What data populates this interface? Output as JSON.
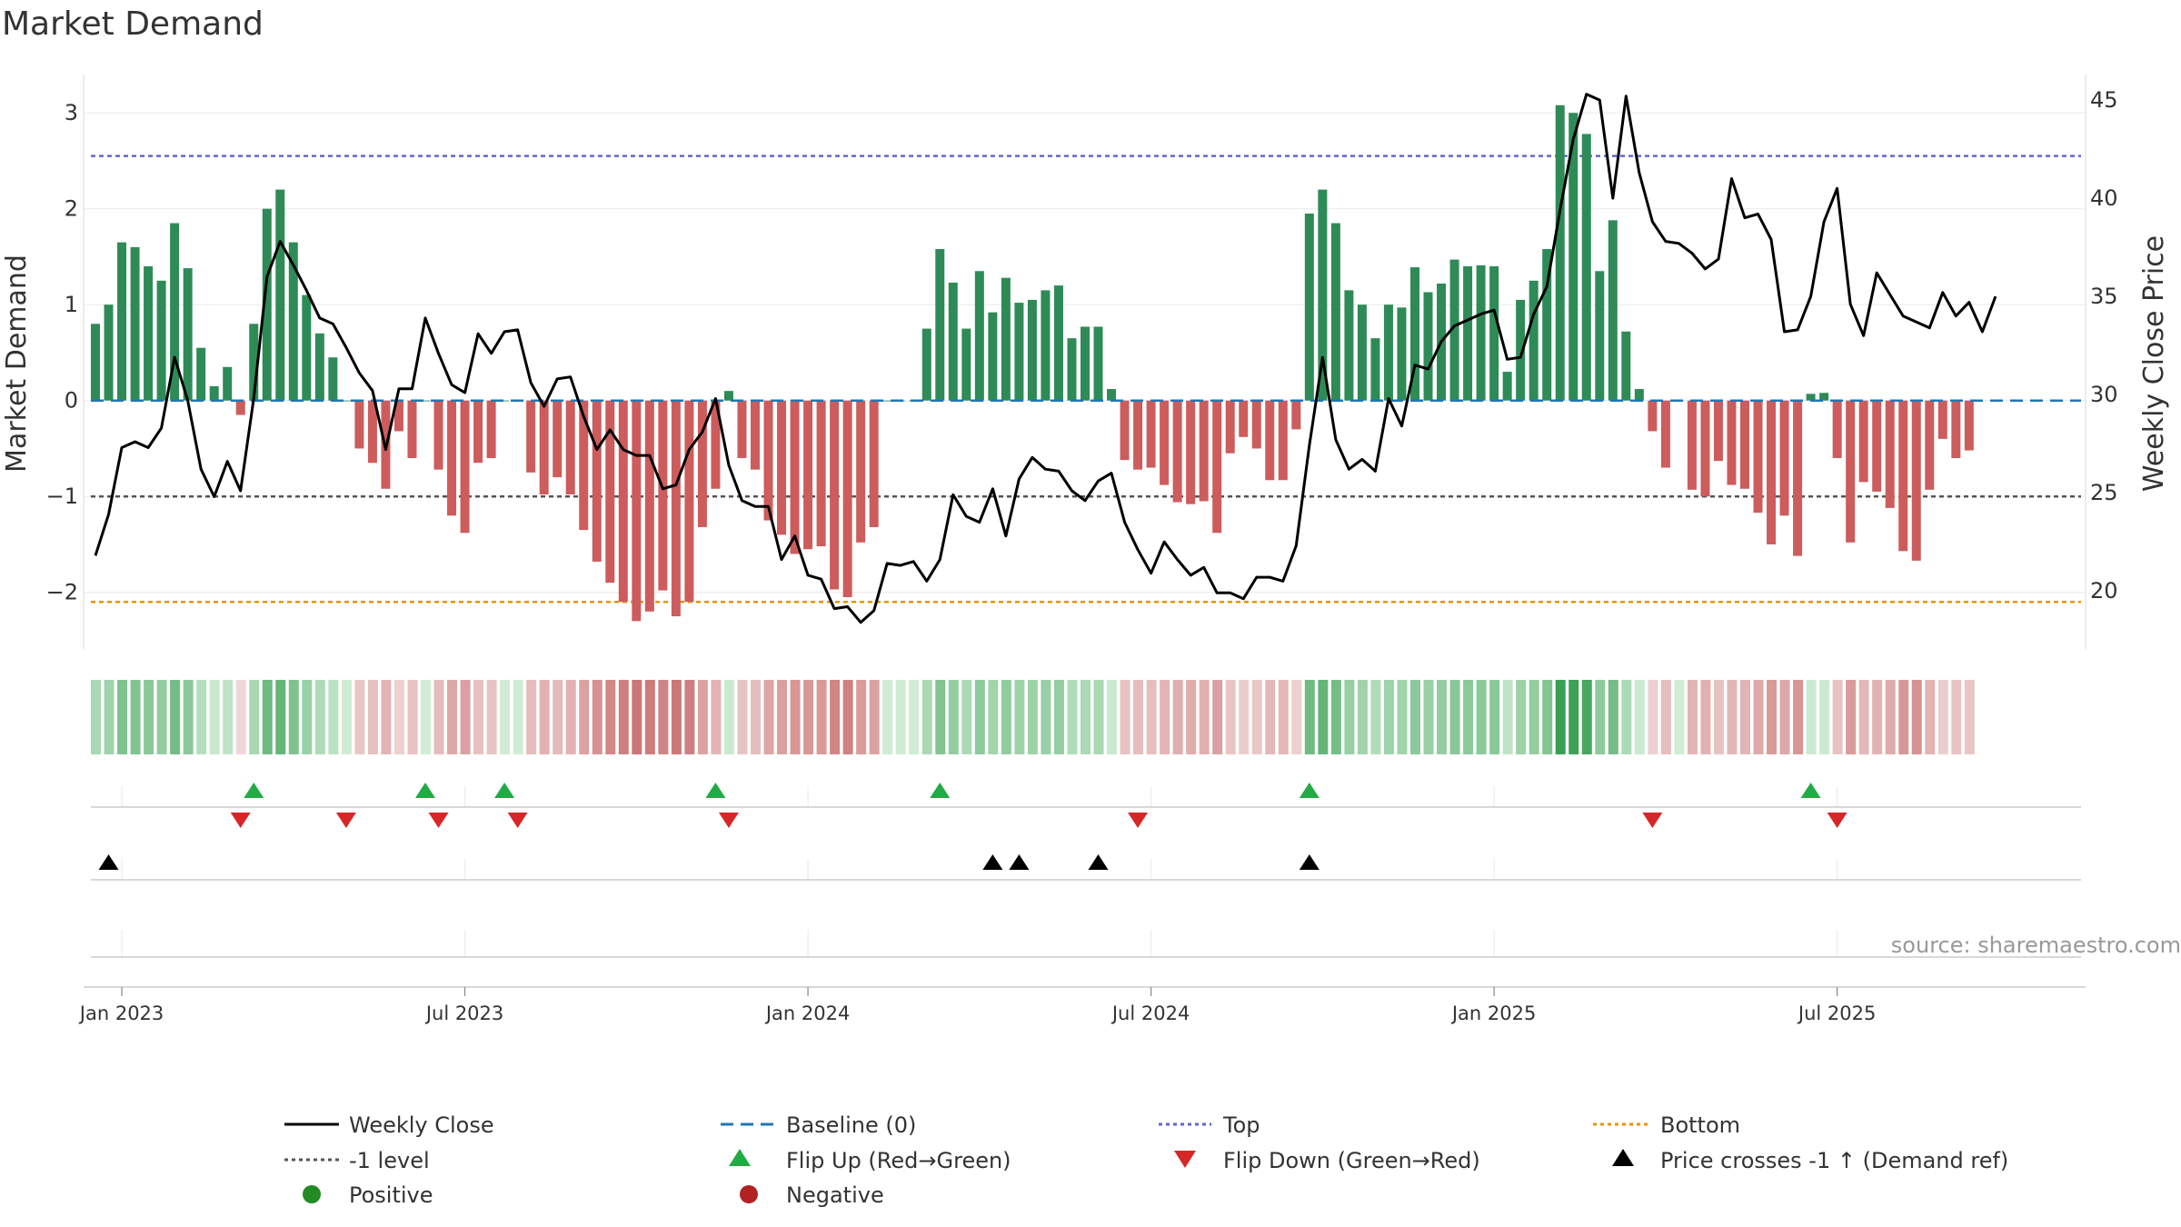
{
  "chart_data": {
    "type": "bar",
    "title": "Market Demand",
    "ylabel_left": "Market Demand",
    "ylabel_right": "Weekly Close Price",
    "source": "source: sharemaestro.com",
    "ylim_left": [
      -2.6,
      3.4
    ],
    "ylim_right": [
      17.0,
      46.3
    ],
    "yticks_left": [
      {
        "v": 3,
        "label": "3"
      },
      {
        "v": 2,
        "label": "2"
      },
      {
        "v": 1,
        "label": "1"
      },
      {
        "v": 0,
        "label": "0"
      },
      {
        "v": -1,
        "label": "−1"
      },
      {
        "v": -2,
        "label": "−2"
      }
    ],
    "yticks_right": [
      {
        "v": 45,
        "label": "45"
      },
      {
        "v": 40,
        "label": "40"
      },
      {
        "v": 35,
        "label": "35"
      },
      {
        "v": 30,
        "label": "30"
      },
      {
        "v": 25,
        "label": "25"
      },
      {
        "v": 20,
        "label": "20"
      }
    ],
    "xticks": [
      {
        "i": 2,
        "label": "Jan 2023"
      },
      {
        "i": 28,
        "label": "Jul 2023"
      },
      {
        "i": 54,
        "label": "Jan 2024"
      },
      {
        "i": 80,
        "label": "Jul 2024"
      },
      {
        "i": 106,
        "label": "Jan 2025"
      },
      {
        "i": 132,
        "label": "Jul 2025"
      }
    ],
    "reference_lines": {
      "top": 2.55,
      "minus_one": -1.0,
      "bottom": -2.1,
      "baseline": 0
    },
    "colors": {
      "positive": "#2e8b57",
      "negative": "#cd5c5c",
      "price": "#000000",
      "top": "#6666cc",
      "bottom": "#e69500",
      "minus_one": "#555555",
      "baseline": "#1f77b4",
      "flip_up": "#22aa44",
      "flip_down": "#d62728",
      "cross": "#000000"
    },
    "series": [
      {
        "name": "Market Demand",
        "values": [
          0.8,
          1.0,
          1.65,
          1.6,
          1.4,
          1.25,
          1.85,
          1.38,
          0.55,
          0.15,
          0.35,
          -0.15,
          0.8,
          2.0,
          2.2,
          1.65,
          1.1,
          0.7,
          0.45,
          0.0,
          -0.5,
          -0.65,
          -0.92,
          -0.32,
          -0.6,
          0.0,
          -0.72,
          -1.2,
          -1.38,
          -0.65,
          -0.6,
          0.0,
          0.0,
          -0.75,
          -0.98,
          -0.8,
          -0.98,
          -1.35,
          -1.68,
          -1.9,
          -2.1,
          -2.3,
          -2.2,
          -1.98,
          -2.25,
          -2.1,
          -1.32,
          -0.92,
          0.1,
          -0.6,
          -0.72,
          -1.25,
          -1.4,
          -1.6,
          -1.55,
          -1.52,
          -1.97,
          -2.05,
          -1.48,
          -1.32,
          0.0,
          0.0,
          0.0,
          0.75,
          1.58,
          1.23,
          0.75,
          1.35,
          0.92,
          1.28,
          1.02,
          1.05,
          1.15,
          1.2,
          0.65,
          0.77,
          0.77,
          0.12,
          -0.62,
          -0.72,
          -0.7,
          -0.88,
          -1.06,
          -1.08,
          -1.05,
          -1.38,
          -0.55,
          -0.38,
          -0.5,
          -0.83,
          -0.83,
          -0.3,
          1.95,
          2.2,
          1.85,
          1.15,
          1.0,
          0.65,
          1.0,
          0.97,
          1.39,
          1.13,
          1.22,
          1.47,
          1.4,
          1.41,
          1.4,
          0.3,
          1.05,
          1.25,
          1.58,
          3.08,
          3.0,
          2.78,
          1.35,
          1.88,
          0.72,
          0.12,
          -0.32,
          -0.7,
          -0.0,
          -0.93,
          -1.0,
          -0.63,
          -0.88,
          -0.92,
          -1.17,
          -1.5,
          -1.2,
          -1.62,
          0.07,
          0.08,
          -0.6,
          -1.48,
          -0.85,
          -0.95,
          -1.12,
          -1.57,
          -1.67,
          -0.93,
          -0.4,
          -0.6,
          -0.52
        ]
      },
      {
        "name": "Weekly Close",
        "values": [
          21.8,
          23.9,
          27.3,
          27.6,
          27.3,
          28.3,
          31.9,
          29.7,
          26.2,
          24.8,
          26.6,
          25.1,
          29.8,
          36.0,
          37.8,
          36.6,
          35.3,
          33.9,
          33.6,
          32.4,
          31.1,
          30.2,
          27.2,
          30.3,
          30.3,
          33.9,
          32.1,
          30.5,
          30.1,
          33.1,
          32.1,
          33.2,
          33.3,
          30.6,
          29.4,
          30.8,
          30.9,
          28.9,
          27.2,
          28.2,
          27.2,
          26.9,
          26.9,
          25.2,
          25.4,
          27.2,
          28.1,
          29.8,
          26.4,
          24.6,
          24.3,
          24.3,
          21.6,
          22.8,
          20.8,
          20.6,
          19.1,
          19.2,
          18.4,
          19.0,
          21.4,
          21.3,
          21.5,
          20.5,
          21.6,
          24.9,
          23.8,
          23.5,
          25.2,
          22.8,
          25.7,
          26.8,
          26.2,
          26.1,
          25.1,
          24.6,
          25.6,
          26.0,
          23.5,
          22.1,
          20.9,
          22.5,
          21.6,
          20.8,
          21.2,
          19.9,
          19.9,
          19.6,
          20.7,
          20.7,
          20.5,
          22.3,
          27.4,
          31.9,
          27.7,
          26.2,
          26.7,
          26.1,
          29.8,
          28.4,
          31.5,
          31.3,
          32.7,
          33.5,
          33.8,
          34.1,
          34.3,
          31.8,
          31.9,
          34.1,
          35.5,
          39.4,
          43.0,
          45.3,
          45.0,
          40.0,
          45.2,
          41.3,
          38.8,
          37.8,
          37.7,
          37.2,
          36.4,
          36.9,
          41.0,
          39.0,
          39.2,
          37.9,
          33.2,
          33.3,
          35.0,
          38.8,
          40.5,
          34.6,
          33.0,
          36.2,
          35.1,
          34.0,
          33.7,
          33.4,
          35.2,
          34.0,
          34.7,
          33.2,
          35.0
        ]
      }
    ],
    "flip_up_weeks": [
      12,
      25,
      31,
      47,
      64,
      92,
      130
    ],
    "flip_down_weeks": [
      11,
      19,
      26,
      32,
      48,
      79,
      118,
      132
    ],
    "price_cross_weeks": [
      1,
      68,
      70,
      76,
      92
    ],
    "legend": {
      "weekly_close": "Weekly Close",
      "baseline": "Baseline (0)",
      "top": "Top",
      "bottom": "Bottom",
      "minus_one": "-1 level",
      "flip_up": "Flip Up (Red→Green)",
      "flip_down": "Flip Down (Green→Red)",
      "cross": "Price crosses -1 ↑ (Demand ref)",
      "positive": "Positive",
      "negative": "Negative"
    }
  }
}
